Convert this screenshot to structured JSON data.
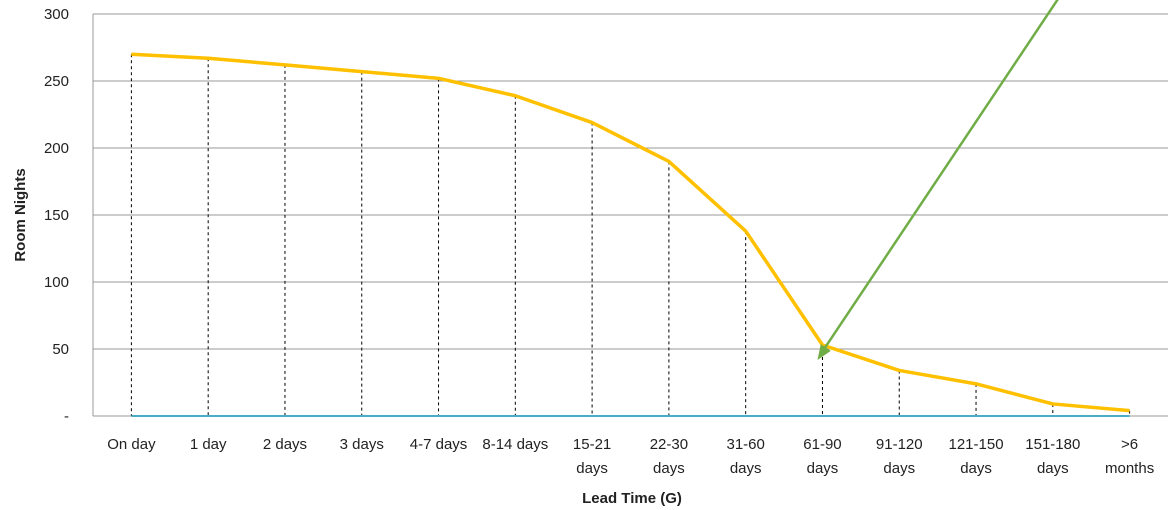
{
  "chart_data": {
    "type": "line",
    "title": "",
    "xlabel": "Lead Time (G)",
    "ylabel": "Room Nights",
    "ylim": [
      0,
      300
    ],
    "yticks": [
      0,
      50,
      100,
      150,
      200,
      250,
      300
    ],
    "ytick_labels": [
      "-",
      "50",
      "100",
      "150",
      "200",
      "250",
      "300"
    ],
    "categories": [
      [
        "On day"
      ],
      [
        "1 day"
      ],
      [
        "2 days"
      ],
      [
        "3 days"
      ],
      [
        "4-7 days"
      ],
      [
        "8-14 days"
      ],
      [
        "15-21",
        "days"
      ],
      [
        "22-30",
        "days"
      ],
      [
        "31-60",
        "days"
      ],
      [
        "61-90",
        "days"
      ],
      [
        "91-120",
        "days"
      ],
      [
        "121-150",
        "days"
      ],
      [
        "151-180",
        "days"
      ],
      [
        ">6",
        "months"
      ]
    ],
    "series": [
      {
        "values": [
          270,
          267,
          262,
          257,
          252,
          239,
          219,
          190,
          138,
          53,
          34,
          24,
          9,
          4
        ],
        "color": "#FFC000"
      },
      {
        "values": [
          0,
          0,
          0,
          0,
          0,
          0,
          0,
          0,
          0,
          0,
          0,
          0,
          0,
          0
        ],
        "color": "#4BACC6"
      }
    ],
    "drop_lines": true,
    "grid": "horizontal",
    "annotation": {
      "type": "arrow",
      "color": "#70AD47",
      "points_to_category": "61-90 days"
    }
  }
}
